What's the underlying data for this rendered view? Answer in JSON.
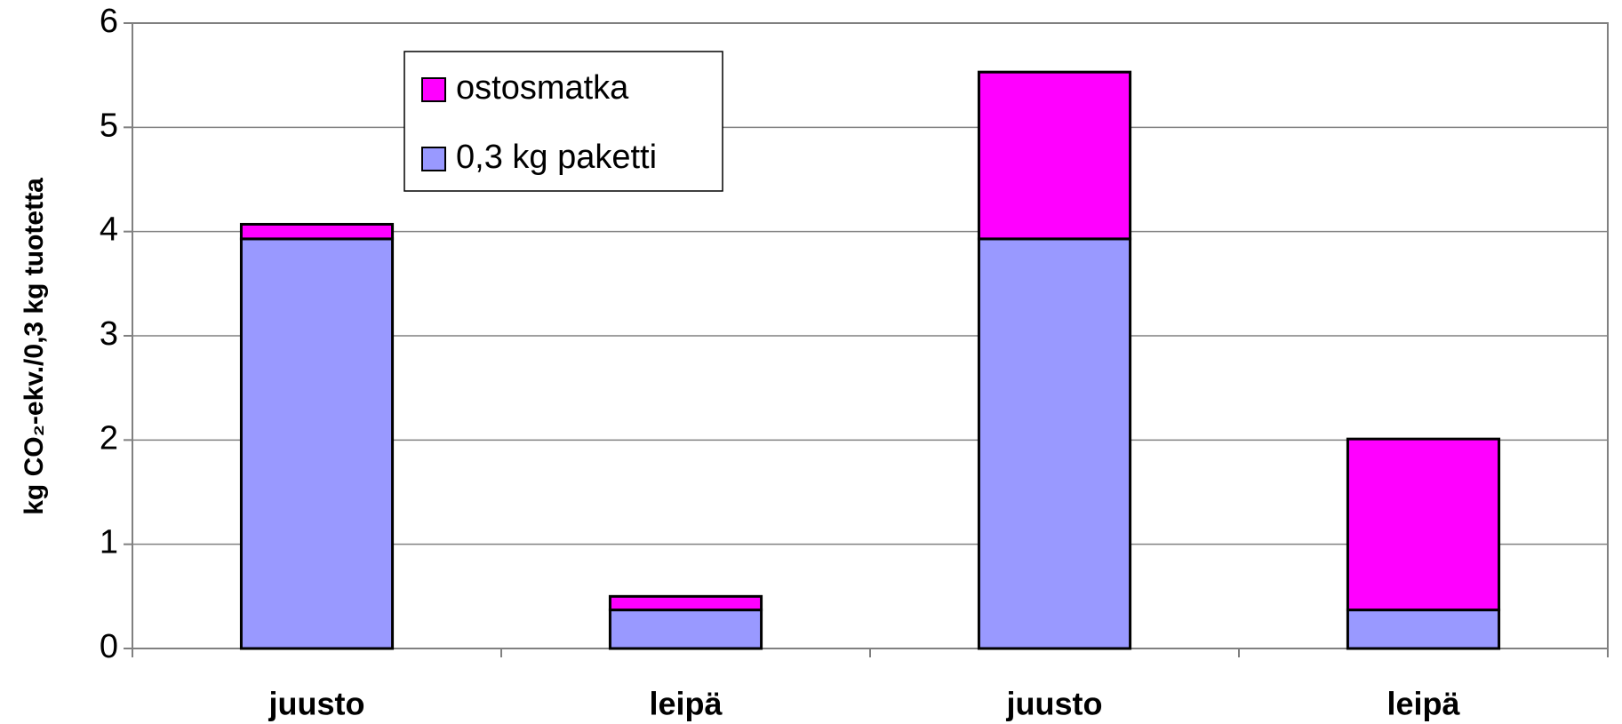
{
  "chart_data": {
    "type": "stacked_bar",
    "y_label": "kg CO₂-ekv./0,3 kg tuotetta",
    "categories": [
      "juusto",
      "leipä",
      "juusto",
      "leipä"
    ],
    "series": [
      {
        "name": "0,3 kg paketti",
        "color": "#9999ff",
        "values": [
          3.93,
          0.37,
          3.93,
          0.37
        ]
      },
      {
        "name": "ostosmatka",
        "color": "#ff00ff",
        "values": [
          0.14,
          0.13,
          1.6,
          1.64
        ]
      }
    ],
    "ylim": [
      0,
      6
    ],
    "yticks": [
      0,
      1,
      2,
      3,
      4,
      5,
      6
    ],
    "grid": true
  }
}
